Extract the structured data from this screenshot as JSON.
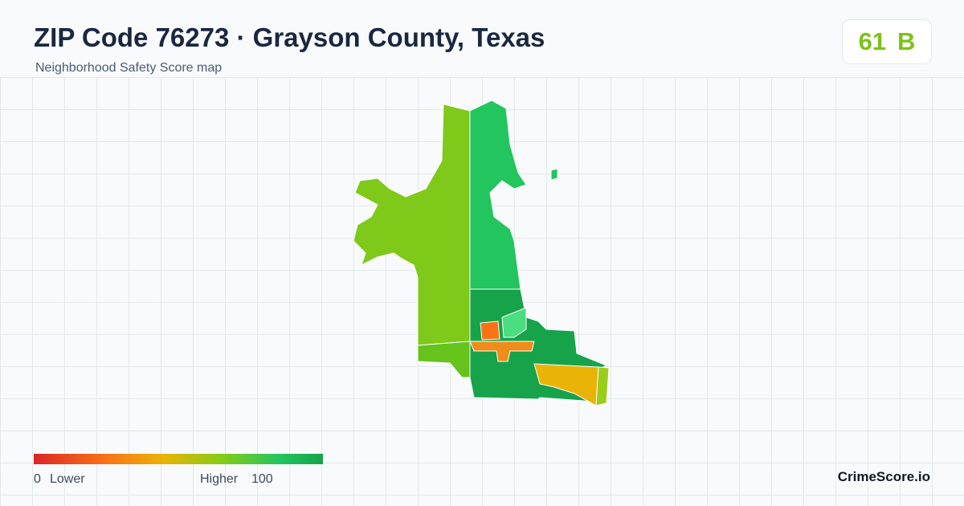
{
  "header": {
    "title": "ZIP Code 76273 · Grayson County, Texas",
    "subtitle": "Neighborhood Safety Score map"
  },
  "badge": {
    "score": 61,
    "grade": "B"
  },
  "legend": {
    "min_value": 0,
    "min_label": "Lower",
    "max_label": "Higher",
    "max_value": 100
  },
  "footer": {
    "brand": "CrimeScore.io"
  }
}
